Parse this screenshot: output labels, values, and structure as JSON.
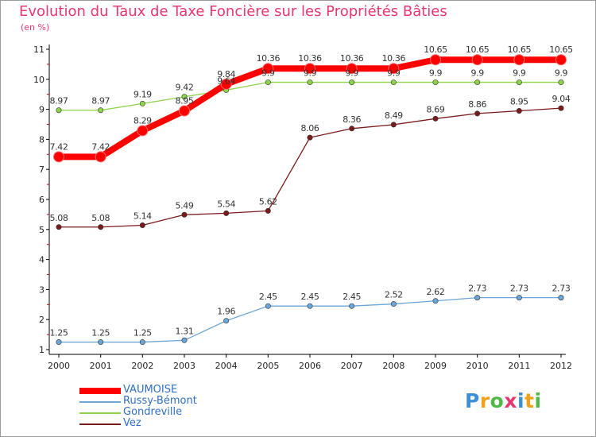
{
  "header": {
    "title": "Evolution du Taux de Taxe Foncière sur les Propriétés Bâties",
    "unit": "(en %)"
  },
  "colors": {
    "title": "#e8366f",
    "axis": "#000000",
    "grid_tick": "#cc0000",
    "legend_text": "#2f6fbf"
  },
  "chart_data": {
    "type": "line",
    "title": "Evolution du Taux de Taxe Foncière sur les Propriétés Bâties",
    "ylabel": "(en %)",
    "xlabel": "",
    "ylim": [
      1,
      11
    ],
    "yticks": [
      "1",
      "2",
      "3",
      "4",
      "5",
      "6",
      "7",
      "8",
      "9",
      "10",
      "11"
    ],
    "categories": [
      "2000",
      "2001",
      "2002",
      "2003",
      "2004",
      "2005",
      "2006",
      "2007",
      "2008",
      "2009",
      "2010",
      "2011",
      "2012"
    ],
    "series": [
      {
        "name": "Vez",
        "color": "#7b1a1a",
        "values": [
          5.08,
          5.08,
          5.14,
          5.49,
          5.54,
          5.62,
          8.06,
          8.36,
          8.49,
          8.69,
          8.86,
          8.95,
          9.04
        ],
        "labels": [
          "5.08",
          "5.08",
          "5.14",
          "5.49",
          "5.54",
          "5.62",
          "8.06",
          "8.36",
          "8.49",
          "8.69",
          "8.86",
          "8.95",
          "9.04"
        ]
      },
      {
        "name": "Gondreville",
        "color": "#8ed44a",
        "values": [
          8.97,
          8.97,
          9.19,
          9.42,
          9.64,
          9.9,
          9.9,
          9.9,
          9.9,
          9.9,
          9.9,
          9.9,
          9.9
        ],
        "labels": [
          "8.97",
          "8.97",
          "9.19",
          "9.42",
          "9.64",
          "9.9",
          "9.9",
          "9.9",
          "9.9",
          "9.9",
          "9.9",
          "9.9",
          "9.9"
        ]
      },
      {
        "name": "Russy-Bémont",
        "color": "#6aa6d8",
        "values": [
          1.25,
          1.25,
          1.25,
          1.31,
          1.96,
          2.45,
          2.45,
          2.45,
          2.52,
          2.62,
          2.73,
          2.73,
          2.73
        ],
        "labels": [
          "1.25",
          "1.25",
          "1.25",
          "1.31",
          "1.96",
          "2.45",
          "2.45",
          "2.45",
          "2.52",
          "2.62",
          "2.73",
          "2.73",
          "2.73"
        ]
      },
      {
        "name": "VAUMOISE",
        "color": "#ff0000",
        "values": [
          7.42,
          7.42,
          8.29,
          8.95,
          9.84,
          10.36,
          10.36,
          10.36,
          10.36,
          10.65,
          10.65,
          10.65,
          10.65
        ],
        "labels": [
          "7.42",
          "7.42",
          "8.29",
          "8.95",
          "9.84",
          "10.36",
          "10.36",
          "10.36",
          "10.36",
          "10.65",
          "10.65",
          "10.65",
          "10.65"
        ]
      }
    ],
    "legend": {
      "position": "bottom-left",
      "order": [
        "VAUMOISE",
        "Russy-Bémont",
        "Gondreville",
        "Vez"
      ]
    }
  },
  "brand": {
    "letters": [
      "P",
      "r",
      "o",
      "x",
      "i",
      "t",
      "i"
    ],
    "colors": [
      "#3c8fd6",
      "#f0a11a",
      "#4fb848",
      "#e8366f",
      "#3c8fd6",
      "#f0a11a",
      "#4fb848"
    ]
  }
}
